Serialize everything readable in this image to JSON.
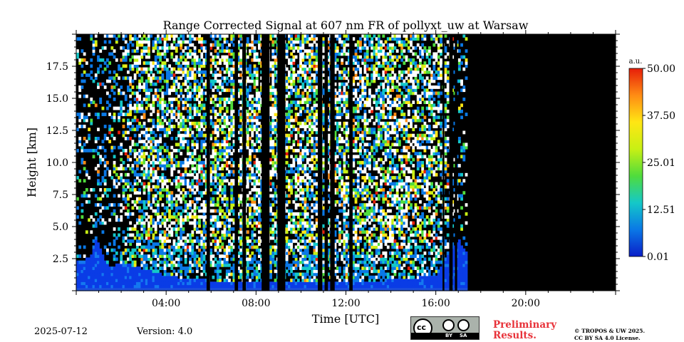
{
  "chart_data": {
    "type": "heatmap",
    "title": "Range Corrected Signal at 607 nm FR of pollyxt_uw at Warsaw",
    "xlabel": "Time [UTC]",
    "ylabel": "Height [km]",
    "xlim_hours": [
      0,
      24
    ],
    "ylim_km": [
      0,
      20
    ],
    "x_ticks": [
      {
        "hour": 4,
        "label": "04:00"
      },
      {
        "hour": 8,
        "label": "08:00"
      },
      {
        "hour": 12,
        "label": "12:00"
      },
      {
        "hour": 16,
        "label": "16:00"
      },
      {
        "hour": 20,
        "label": "20:00"
      }
    ],
    "y_ticks": [
      {
        "value": 2.5,
        "label": "2.5"
      },
      {
        "value": 5.0,
        "label": "5.0"
      },
      {
        "value": 7.5,
        "label": "7.5"
      },
      {
        "value": 10.0,
        "label": "10.0"
      },
      {
        "value": 12.5,
        "label": "12.5"
      },
      {
        "value": 15.0,
        "label": "15.0"
      },
      {
        "value": 17.5,
        "label": "17.5"
      }
    ],
    "colorbar": {
      "unit": "a.u.",
      "min": 0.01,
      "max": 50.0,
      "ticks": [
        {
          "value": 0.01,
          "label": "0.01"
        },
        {
          "value": 12.51,
          "label": "12.51"
        },
        {
          "value": 25.01,
          "label": "25.01"
        },
        {
          "value": 37.5,
          "label": "37.50"
        },
        {
          "value": 50.0,
          "label": "50.00"
        }
      ],
      "colormap": [
        "#0a1ec8",
        "#0a78e6",
        "#14c8c8",
        "#50dc3c",
        "#c8f014",
        "#ffe614",
        "#ff8c14",
        "#e61e0a"
      ]
    },
    "data_end_hour": 17.4,
    "missing_intervals_hours": [
      [
        5.8,
        5.95
      ],
      [
        7.05,
        7.2
      ],
      [
        7.4,
        7.55
      ],
      [
        8.25,
        8.6
      ],
      [
        8.95,
        9.3
      ],
      [
        10.75,
        10.95
      ],
      [
        11.05,
        11.2
      ],
      [
        11.3,
        11.5
      ],
      [
        12.15,
        12.3
      ],
      [
        16.3,
        16.38
      ],
      [
        16.6,
        16.75
      ],
      [
        16.85,
        16.95
      ]
    ],
    "boundary_layer_profile": [
      {
        "hour": 0.0,
        "height_km": 2.4
      },
      {
        "hour": 0.6,
        "height_km": 2.5
      },
      {
        "hour": 0.9,
        "height_km": 4.2
      },
      {
        "hour": 1.2,
        "height_km": 2.6
      },
      {
        "hour": 1.5,
        "height_km": 1.8
      },
      {
        "hour": 2.0,
        "height_km": 2.2
      },
      {
        "hour": 2.5,
        "height_km": 2.0
      },
      {
        "hour": 3.0,
        "height_km": 1.7
      },
      {
        "hour": 4.0,
        "height_km": 1.2
      },
      {
        "hour": 5.0,
        "height_km": 0.9
      },
      {
        "hour": 8.0,
        "height_km": 0.6
      },
      {
        "hour": 12.0,
        "height_km": 0.6
      },
      {
        "hour": 15.0,
        "height_km": 1.0
      },
      {
        "hour": 16.0,
        "height_km": 1.2
      },
      {
        "hour": 16.6,
        "height_km": 3.0
      },
      {
        "hour": 17.0,
        "height_km": 4.0
      },
      {
        "hour": 17.4,
        "height_km": 3.0
      }
    ]
  },
  "footer": {
    "date": "2025-07-12",
    "version": "Version: 4.0",
    "preliminary_line1": "Preliminary",
    "preliminary_line2": "Results.",
    "copyright_line1": "© TROPOS & UW 2025.",
    "copyright_line2": "CC BY SA 4.0 License.",
    "license_badge": {
      "main": "cc",
      "by": "BY",
      "sa": "SA"
    }
  }
}
